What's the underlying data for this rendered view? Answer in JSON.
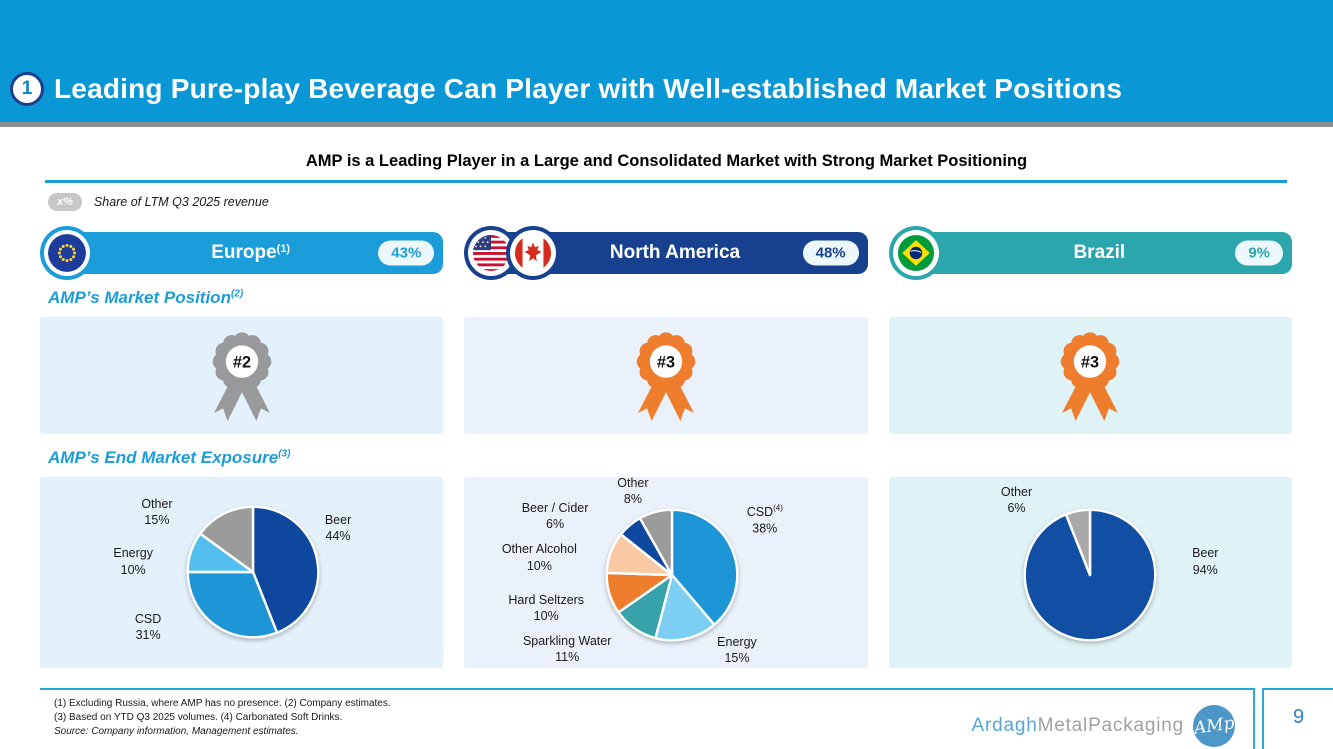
{
  "header": {
    "number": "1",
    "title": "Leading Pure-play Beverage Can Player with Well-established Market Positions"
  },
  "subtitle": "AMP is a Leading Player in a Large and Consolidated Market with Strong Market Positioning",
  "legend": {
    "pill": "x%",
    "label": "Share of LTM Q3 2025 revenue"
  },
  "sections": {
    "market_position": {
      "title": "AMP’s Market Position",
      "sup": "(2)"
    },
    "end_market": {
      "title": "AMP’s End Market Exposure",
      "sup": "(3)"
    }
  },
  "colors": {
    "band": "#0A97D5",
    "accent": "#1B9DD9",
    "rule_gray": "#8D9093",
    "footer_border": "#29A8DC"
  },
  "regions": [
    {
      "name": "Europe",
      "sup": "(1)",
      "share": "43%",
      "color": "#1B9DD9",
      "box_bg": "#E3F1FB",
      "position": "#2",
      "position_color": "#97999B"
    },
    {
      "name": "North America",
      "share": "48%",
      "color": "#17418E",
      "box_bg": "#EAF1FB",
      "position": "#3",
      "position_color": "#EF7D2E"
    },
    {
      "name": "Brazil",
      "share": "9%",
      "color": "#2AA6AC",
      "box_bg": "#DFF3F6",
      "position": "#3",
      "position_color": "#EF7D2E"
    }
  ],
  "chart_data": [
    {
      "type": "pie",
      "region": "Europe",
      "title": "AMP’s End Market Exposure — Europe",
      "center": {
        "x": "52.9%",
        "y": "49.5%"
      },
      "slices": [
        {
          "label": "Beer",
          "value": 44,
          "color": "#0E489E",
          "lx": "73.9%",
          "ly": "26.8%"
        },
        {
          "label": "CSD",
          "value": 31,
          "color": "#1E96D6",
          "lx": "26.8%",
          "ly": "78.4%"
        },
        {
          "label": "Energy",
          "value": 10,
          "color": "#52BFEF",
          "lx": "23.1%",
          "ly": "44.2%"
        },
        {
          "label": "Other",
          "value": 15,
          "color": "#9B9B9B",
          "lx": "29.0%",
          "ly": "18.4%"
        }
      ]
    },
    {
      "type": "pie",
      "region": "North America",
      "title": "AMP’s End Market Exposure — North America",
      "center": {
        "x": "51.5%",
        "y": "51.1%"
      },
      "slices": [
        {
          "label": "CSD",
          "sup": "(4)",
          "value": 38,
          "color": "#1E96D6",
          "lx": "74.5%",
          "ly": "22.6%"
        },
        {
          "label": "Energy",
          "value": 15,
          "color": "#7CCFF3",
          "lx": "67.6%",
          "ly": "90.5%"
        },
        {
          "label": "Sparkling Water",
          "value": 11,
          "color": "#37A2A9",
          "lx": "25.5%",
          "ly": "90.0%"
        },
        {
          "label": "Hard Seltzers",
          "value": 10,
          "color": "#EF7D2E",
          "lx": "20.3%",
          "ly": "68.4%"
        },
        {
          "label": "Other Alcohol",
          "value": 10,
          "color": "#F8C9A2",
          "lx": "18.6%",
          "ly": "42.1%"
        },
        {
          "label": "Beer / Cider",
          "value": 6,
          "color": "#0E489E",
          "lx": "22.5%",
          "ly": "20.5%"
        },
        {
          "label": "Other",
          "value": 8,
          "color": "#9B9B9B",
          "lx": "41.8%",
          "ly": "7.4%"
        }
      ]
    },
    {
      "type": "pie",
      "region": "Brazil",
      "title": "AMP’s End Market Exposure — Brazil",
      "center": {
        "x": "49.8%",
        "y": "51.1%"
      },
      "slices": [
        {
          "label": "Beer",
          "value": 94,
          "color": "#114FA5",
          "lx": "78.5%",
          "ly": "44.2%"
        },
        {
          "label": "Other",
          "value": 6,
          "color": "#A9A9A9",
          "lx": "31.7%",
          "ly": "12.1%"
        }
      ]
    }
  ],
  "footnotes": [
    "(1) Excluding Russia, where AMP has no presence. (2) Company estimates.",
    "(3) Based on YTD Q3 2025 volumes. (4) Carbonated Soft Drinks."
  ],
  "source": "Source: Company information, Management estimates.",
  "footer": {
    "brand_primary": "Ardagh",
    "brand_secondary": "MetalPackaging",
    "logo_monogram": "AMp",
    "page": "9"
  }
}
